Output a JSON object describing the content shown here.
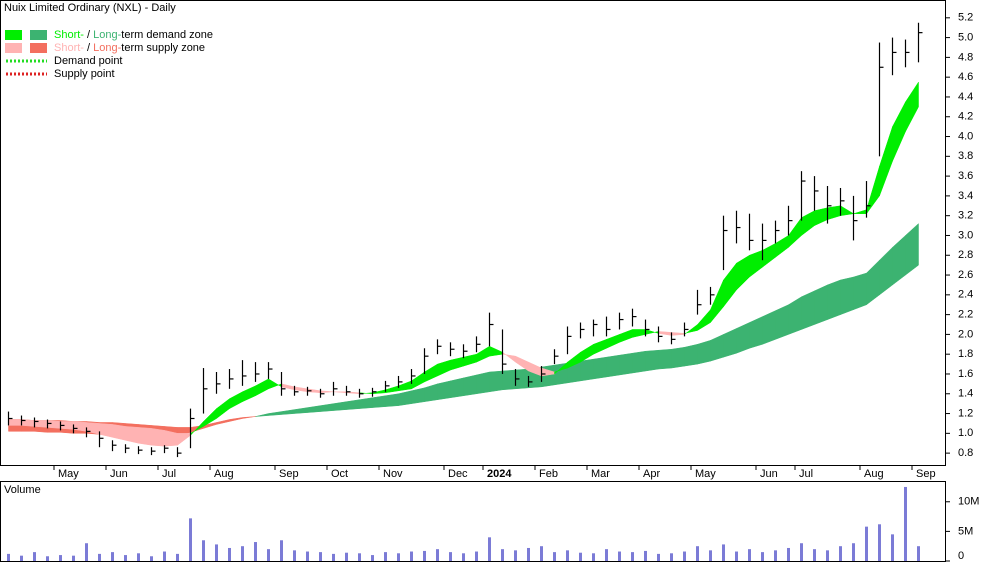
{
  "chart_data": [
    {
      "type": "hlc",
      "title": "Nuix Limited Ordinary (NXL) - Daily",
      "categories": [
        null,
        null,
        null,
        null,
        "May",
        null,
        null,
        null,
        "Jun",
        null,
        null,
        null,
        "Jul",
        null,
        null,
        null,
        "Aug",
        null,
        null,
        null,
        null,
        "Sep",
        null,
        null,
        null,
        "Oct",
        null,
        null,
        null,
        "Nov",
        null,
        null,
        null,
        null,
        "Dec",
        null,
        null,
        "2024",
        null,
        null,
        null,
        "Feb",
        null,
        null,
        null,
        "Mar",
        null,
        null,
        null,
        "Apr",
        null,
        null,
        null,
        "May",
        null,
        null,
        null,
        null,
        "Jun",
        null,
        null,
        "Jul",
        null,
        null,
        null,
        null,
        "Aug",
        null,
        null,
        null,
        "Sep"
      ],
      "high": [
        1.22,
        1.18,
        1.16,
        1.14,
        1.12,
        1.09,
        1.06,
        1.02,
        0.93,
        0.89,
        0.87,
        0.86,
        0.88,
        0.86,
        1.25,
        1.66,
        1.62,
        1.65,
        1.74,
        1.72,
        1.72,
        1.62,
        1.48,
        1.47,
        1.45,
        1.52,
        1.48,
        1.45,
        1.46,
        1.53,
        1.58,
        1.65,
        1.86,
        1.95,
        1.92,
        1.9,
        1.98,
        2.22,
        2.05,
        1.65,
        1.58,
        1.68,
        1.85,
        2.08,
        2.12,
        2.15,
        2.18,
        2.22,
        2.26,
        2.15,
        2.08,
        2.02,
        2.12,
        2.45,
        2.48,
        3.2,
        3.25,
        3.22,
        3.12,
        3.15,
        3.3,
        3.65,
        3.6,
        3.5,
        3.48,
        3.4,
        3.55,
        4.95,
        5.0,
        4.98,
        5.15
      ],
      "low": [
        1.08,
        1.08,
        1.06,
        1.05,
        1.03,
        1.0,
        0.96,
        0.86,
        0.82,
        0.8,
        0.79,
        0.78,
        0.8,
        0.76,
        0.85,
        1.2,
        1.4,
        1.45,
        1.48,
        1.52,
        1.55,
        1.38,
        1.38,
        1.38,
        1.36,
        1.38,
        1.38,
        1.36,
        1.37,
        1.42,
        1.46,
        1.5,
        1.6,
        1.8,
        1.78,
        1.76,
        1.82,
        1.88,
        1.6,
        1.48,
        1.47,
        1.52,
        1.7,
        1.8,
        1.96,
        1.98,
        1.98,
        2.05,
        2.08,
        1.98,
        1.92,
        1.9,
        1.98,
        2.2,
        2.3,
        2.65,
        2.92,
        2.85,
        2.75,
        2.92,
        3.0,
        3.15,
        3.25,
        3.12,
        3.2,
        2.95,
        3.18,
        3.8,
        4.62,
        4.7,
        4.75
      ],
      "close": [
        1.15,
        1.13,
        1.12,
        1.1,
        1.08,
        1.05,
        1.02,
        0.95,
        0.88,
        0.85,
        0.83,
        0.82,
        0.85,
        0.8,
        1.15,
        1.45,
        1.5,
        1.55,
        1.58,
        1.6,
        1.65,
        1.45,
        1.42,
        1.43,
        1.4,
        1.45,
        1.42,
        1.4,
        1.42,
        1.48,
        1.52,
        1.58,
        1.78,
        1.88,
        1.85,
        1.83,
        1.9,
        2.1,
        1.7,
        1.55,
        1.52,
        1.6,
        1.78,
        1.98,
        2.05,
        2.1,
        2.05,
        2.15,
        2.18,
        2.05,
        1.98,
        1.95,
        2.05,
        2.3,
        2.4,
        3.05,
        3.08,
        2.95,
        2.95,
        3.05,
        3.15,
        3.55,
        3.45,
        3.3,
        3.35,
        3.15,
        3.3,
        4.7,
        4.85,
        4.85,
        5.05
      ],
      "bar_color": "#000000",
      "zones": [
        {
          "demand_color": "#3cb371",
          "supply_color": "#f36f5f",
          "fast": [
            1.02,
            1.02,
            1.02,
            1.01,
            1.01,
            1.0,
            1.0,
            0.99,
            0.98,
            0.98,
            0.97,
            0.97,
            0.97,
            0.98,
            1.01,
            1.05,
            1.09,
            1.12,
            1.15,
            1.17,
            1.2,
            1.22,
            1.24,
            1.26,
            1.28,
            1.3,
            1.32,
            1.34,
            1.36,
            1.38,
            1.4,
            1.43,
            1.46,
            1.5,
            1.53,
            1.56,
            1.59,
            1.62,
            1.63,
            1.64,
            1.65,
            1.67,
            1.69,
            1.71,
            1.73,
            1.75,
            1.77,
            1.79,
            1.81,
            1.83,
            1.84,
            1.85,
            1.87,
            1.9,
            1.94,
            2.0,
            2.06,
            2.12,
            2.18,
            2.24,
            2.3,
            2.38,
            2.44,
            2.5,
            2.55,
            2.58,
            2.62,
            2.75,
            2.88,
            3.0,
            3.12
          ],
          "slow": [
            1.14,
            1.14,
            1.13,
            1.13,
            1.13,
            1.12,
            1.12,
            1.11,
            1.11,
            1.1,
            1.09,
            1.08,
            1.07,
            1.06,
            1.06,
            1.08,
            1.11,
            1.14,
            1.16,
            1.17,
            1.18,
            1.19,
            1.2,
            1.21,
            1.22,
            1.23,
            1.24,
            1.25,
            1.26,
            1.27,
            1.28,
            1.3,
            1.32,
            1.34,
            1.36,
            1.38,
            1.4,
            1.42,
            1.44,
            1.45,
            1.46,
            1.47,
            1.49,
            1.51,
            1.53,
            1.55,
            1.57,
            1.59,
            1.61,
            1.63,
            1.65,
            1.66,
            1.68,
            1.7,
            1.73,
            1.77,
            1.81,
            1.86,
            1.9,
            1.95,
            2.0,
            2.05,
            2.1,
            2.15,
            2.2,
            2.25,
            2.3,
            2.4,
            2.5,
            2.6,
            2.7
          ]
        },
        {
          "demand_color": "#00ee00",
          "supply_color": "#ffb3b3",
          "fast": [
            1.08,
            1.08,
            1.07,
            1.06,
            1.05,
            1.04,
            1.02,
            0.99,
            0.96,
            0.93,
            0.9,
            0.88,
            0.87,
            0.88,
            0.98,
            1.12,
            1.25,
            1.35,
            1.42,
            1.48,
            1.55,
            1.47,
            1.44,
            1.42,
            1.41,
            1.42,
            1.41,
            1.4,
            1.41,
            1.44,
            1.48,
            1.53,
            1.62,
            1.7,
            1.74,
            1.77,
            1.8,
            1.88,
            1.82,
            1.72,
            1.63,
            1.58,
            1.6,
            1.72,
            1.82,
            1.9,
            1.95,
            2.0,
            2.05,
            2.05,
            2.01,
            1.99,
            2.0,
            2.1,
            2.25,
            2.55,
            2.72,
            2.8,
            2.85,
            2.92,
            3.0,
            3.18,
            3.25,
            3.28,
            3.3,
            3.22,
            3.26,
            3.7,
            4.1,
            4.35,
            4.55
          ],
          "slow": [
            1.14,
            1.14,
            1.13,
            1.13,
            1.12,
            1.12,
            1.11,
            1.1,
            1.09,
            1.07,
            1.06,
            1.05,
            1.03,
            1.0,
            1.0,
            1.07,
            1.15,
            1.25,
            1.32,
            1.38,
            1.45,
            1.5,
            1.47,
            1.45,
            1.43,
            1.42,
            1.42,
            1.41,
            1.4,
            1.41,
            1.43,
            1.45,
            1.52,
            1.58,
            1.64,
            1.68,
            1.72,
            1.78,
            1.8,
            1.78,
            1.72,
            1.66,
            1.62,
            1.66,
            1.72,
            1.8,
            1.86,
            1.92,
            1.97,
            2.0,
            2.03,
            2.02,
            2.01,
            2.04,
            2.12,
            2.28,
            2.45,
            2.58,
            2.68,
            2.78,
            2.88,
            3.0,
            3.1,
            3.16,
            3.2,
            3.22,
            3.22,
            3.4,
            3.75,
            4.05,
            4.3
          ]
        }
      ],
      "legend": {
        "zone_rows": [
          [
            "Short-",
            " / ",
            "Long-",
            "term demand zone"
          ],
          [
            "Short-",
            " / ",
            "Long-",
            "term supply zone"
          ]
        ],
        "points": [
          {
            "label": "Demand point",
            "color": "#22dd22"
          },
          {
            "label": "Supply point",
            "color": "#dd2222"
          }
        ]
      },
      "ylim": [
        0.68,
        5.38
      ],
      "yticks": [
        0.8,
        {
          "value": 1,
          "label": "1.0"
        },
        1.2,
        1.4,
        1.6,
        1.8,
        {
          "value": 2,
          "label": "2.0"
        },
        2.2,
        2.4,
        2.6,
        2.8,
        {
          "value": 3,
          "label": "3.0"
        },
        3.2,
        3.4,
        3.6,
        3.8,
        {
          "value": 4,
          "label": "4.0"
        },
        4.2,
        4.4,
        4.6,
        4.8,
        {
          "value": 5,
          "label": "5.0"
        },
        5.2
      ]
    },
    {
      "type": "bar",
      "title": "Volume",
      "title_color": "#330099",
      "color": "#7b7bd6",
      "values": [
        1200000,
        900000,
        1500000,
        800000,
        1000000,
        900000,
        3000000,
        1200000,
        1500000,
        1000000,
        1300000,
        800000,
        1600000,
        1200000,
        7200000,
        3500000,
        2800000,
        2200000,
        2500000,
        3200000,
        2000000,
        3500000,
        1800000,
        1600000,
        1500000,
        1200000,
        1400000,
        1300000,
        1000000,
        1500000,
        1300000,
        1600000,
        1700000,
        2000000,
        1500000,
        1300000,
        1600000,
        4000000,
        2000000,
        1800000,
        2200000,
        2500000,
        1500000,
        1800000,
        1400000,
        1300000,
        2000000,
        1600000,
        1500000,
        1700000,
        1200000,
        1300000,
        1600000,
        2500000,
        1800000,
        2800000,
        1600000,
        2000000,
        1500000,
        1800000,
        2200000,
        3000000,
        2000000,
        1800000,
        2500000,
        3000000,
        5800000,
        6200000,
        4500000,
        12500000,
        2500000
      ],
      "ylim": [
        0,
        13000000
      ],
      "yticks": [
        0,
        {
          "value": 5000000,
          "label": "5M"
        },
        {
          "value": 10000000,
          "label": "10M"
        }
      ]
    }
  ]
}
